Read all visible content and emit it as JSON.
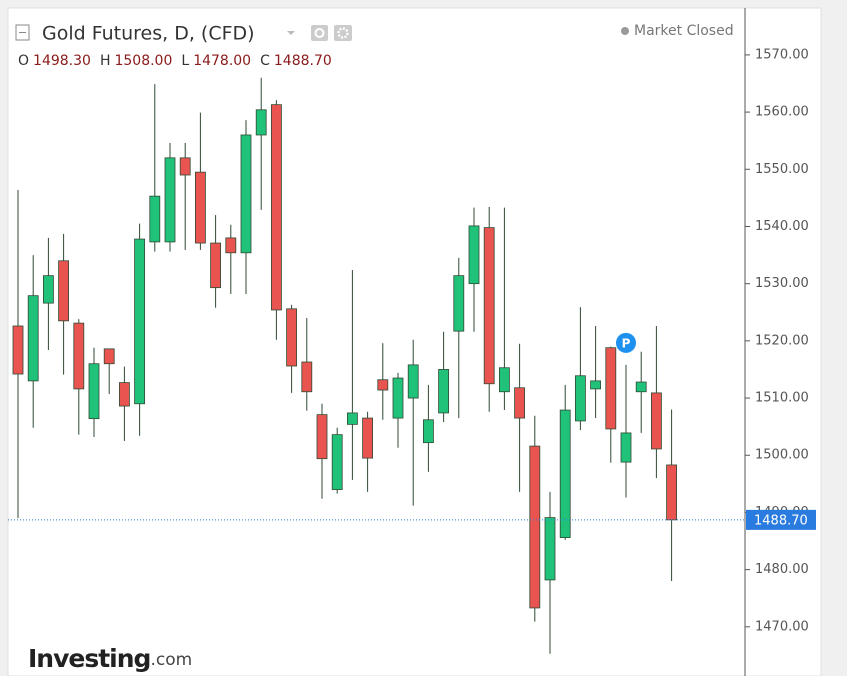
{
  "chart_data": {
    "type": "candlestick",
    "title": "Gold Futures, D, (CFD)",
    "status": "Market Closed",
    "ohlc_legend": [
      {
        "key": "O",
        "value": "1498.30"
      },
      {
        "key": "H",
        "value": "1508.00"
      },
      {
        "key": "L",
        "value": "1478.00"
      },
      {
        "key": "C",
        "value": "1488.70"
      }
    ],
    "marker": "P",
    "watermark": [
      "Investing",
      ".com"
    ],
    "up_color": "#20c27a",
    "down_color": "#ea5450",
    "wick_color": "#2f4a33",
    "open": [
      1522.6,
      1513.0,
      1526.6,
      1534.0,
      1523.1,
      1506.4,
      1518.6,
      1512.7,
      1509.0,
      1537.3,
      1537.3,
      1552.0,
      1549.5,
      1537.1,
      1538.0,
      1535.4,
      1556.0,
      1561.3,
      1525.6,
      1516.3,
      1507.1,
      1494.0,
      1505.4,
      1506.5,
      1513.2,
      1506.5,
      1510.0,
      1502.2,
      1507.4,
      1521.7,
      1530.0,
      1539.8,
      1511.1,
      1511.8,
      1501.6,
      1478.2,
      1485.6,
      1506.0,
      1511.6,
      1518.8,
      1498.8,
      1511.1,
      1510.9,
      1498.3
    ],
    "high": [
      1546.4,
      1535.0,
      1538.0,
      1538.7,
      1523.8,
      1518.8,
      1518.6,
      1515.5,
      1540.5,
      1564.9,
      1554.6,
      1554.6,
      1559.9,
      1542.0,
      1540.3,
      1558.6,
      1566.0,
      1562.1,
      1526.3,
      1524.0,
      1509.0,
      1504.8,
      1532.4,
      1507.6,
      1519.6,
      1514.4,
      1520.2,
      1512.3,
      1521.6,
      1534.5,
      1543.3,
      1543.4,
      1543.3,
      1519.5,
      1506.9,
      1493.6,
      1512.3,
      1525.9,
      1522.6,
      1519.0,
      1515.8,
      1518.1,
      1522.6,
      1508.0
    ],
    "low": [
      1489.0,
      1504.8,
      1518.4,
      1514.1,
      1503.6,
      1503.2,
      1510.7,
      1502.5,
      1503.4,
      1535.6,
      1535.6,
      1535.9,
      1535.9,
      1525.8,
      1528.2,
      1528.2,
      1542.9,
      1520.2,
      1510.9,
      1507.8,
      1492.4,
      1493.3,
      1495.7,
      1493.6,
      1506.2,
      1501.3,
      1491.2,
      1497.1,
      1505.8,
      1506.5,
      1521.6,
      1507.6,
      1507.9,
      1493.6,
      1470.9,
      1465.3,
      1485.2,
      1504.4,
      1506.5,
      1498.7,
      1492.6,
      1503.9,
      1496.0,
      1478.0
    ],
    "close": [
      1514.2,
      1527.9,
      1531.4,
      1523.5,
      1511.6,
      1516.0,
      1516.0,
      1508.6,
      1537.8,
      1545.3,
      1552.0,
      1549.0,
      1537.1,
      1529.3,
      1535.4,
      1556.0,
      1560.4,
      1525.4,
      1515.6,
      1511.1,
      1499.4,
      1503.6,
      1507.4,
      1499.5,
      1511.4,
      1513.5,
      1515.8,
      1506.2,
      1515.0,
      1531.4,
      1540.1,
      1512.5,
      1515.3,
      1506.5,
      1473.3,
      1489.1,
      1507.9,
      1513.9,
      1513.0,
      1504.6,
      1503.9,
      1512.8,
      1501.1,
      1488.7
    ],
    "ylim": [
      1461.4,
      1578.2
    ],
    "yticks": [
      {
        "value": 1470,
        "label": "1470.00"
      },
      {
        "value": 1480,
        "label": "1480.00"
      },
      {
        "value": 1490,
        "label": "1490.00"
      },
      {
        "value": 1500,
        "label": "1500.00"
      },
      {
        "value": 1510,
        "label": "1510.00"
      },
      {
        "value": 1520,
        "label": "1520.00"
      },
      {
        "value": 1530,
        "label": "1530.00"
      },
      {
        "value": 1540,
        "label": "1540.00"
      },
      {
        "value": 1550,
        "label": "1550.00"
      },
      {
        "value": 1560,
        "label": "1560.00"
      },
      {
        "value": 1570,
        "label": "1570.00"
      }
    ],
    "marker_index": 40,
    "price_line_color": "#2a7be0"
  }
}
